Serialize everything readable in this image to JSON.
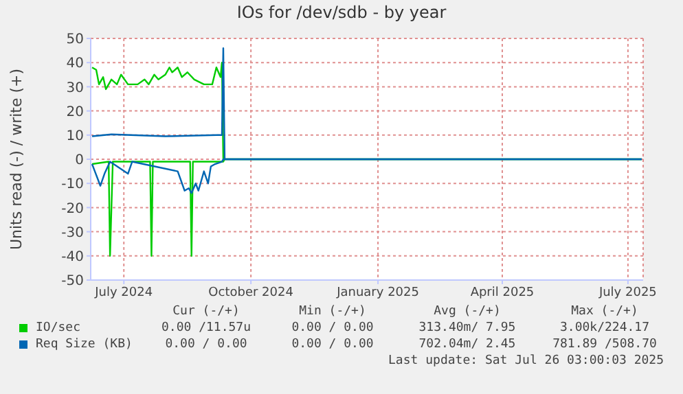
{
  "chart_data": {
    "type": "line",
    "title": "IOs for /dev/sdb - by year",
    "ylabel": "Units read (-) / write (+)",
    "xlim": [
      "2024-06-21",
      "2025-07-26"
    ],
    "xticks": [
      {
        "value": "2024-07-15",
        "label": "July 2024"
      },
      {
        "value": "2024-10-15",
        "label": "October 2024"
      },
      {
        "value": "2025-01-15",
        "label": "January 2025"
      },
      {
        "value": "2025-04-15",
        "label": "April 2025"
      },
      {
        "value": "2025-07-15",
        "label": "July 2025"
      }
    ],
    "ylim": [
      -50,
      50
    ],
    "yticks": [
      -50,
      -40,
      -30,
      -20,
      -10,
      0,
      10,
      20,
      30,
      40,
      50
    ],
    "grid": true,
    "legend": "bottom",
    "marker": "none",
    "line_style": "solid",
    "series": [
      {
        "name": "IO/sec",
        "color": "#00cc00",
        "x": [
          "2024-06-22",
          "2024-06-25",
          "2024-06-27",
          "2024-06-30",
          "2024-07-02",
          "2024-07-06",
          "2024-07-10",
          "2024-07-13",
          "2024-07-18",
          "2024-07-25",
          "2024-07-30",
          "2024-08-02",
          "2024-08-06",
          "2024-08-09",
          "2024-08-14",
          "2024-08-17",
          "2024-08-19",
          "2024-08-23",
          "2024-08-26",
          "2024-08-30",
          "2024-09-04",
          "2024-09-11",
          "2024-09-17",
          "2024-09-20",
          "2024-09-23",
          "2024-09-24",
          "2024-09-25"
        ],
        "values": [
          38,
          37,
          31,
          34,
          29,
          33,
          31,
          35,
          31,
          31,
          33,
          31,
          35,
          33,
          35,
          38,
          36,
          38,
          34,
          36,
          33,
          31,
          31,
          38,
          34,
          40,
          0
        ]
      },
      {
        "name": "Req Size (KB)",
        "color": "#0066b3",
        "x": [
          "2024-06-22",
          "2024-07-06",
          "2024-08-14",
          "2024-09-20",
          "2024-09-24",
          "2024-09-25",
          "2024-09-26",
          "2025-07-25"
        ],
        "values": [
          9.5,
          10.3,
          9.5,
          10,
          10,
          46,
          0,
          0
        ]
      },
      {
        "color": "#00cc00",
        "x": [
          "2024-06-22",
          "2024-07-04",
          "2024-07-05",
          "2024-07-07",
          "2024-08-03",
          "2024-08-04",
          "2024-08-05",
          "2024-09-01",
          "2024-09-02",
          "2024-09-03",
          "2024-09-25",
          "2024-09-26",
          "2025-07-25"
        ],
        "values": [
          -2,
          -1,
          -40,
          -1,
          -1,
          -40,
          -1,
          -1,
          -40,
          -1,
          -1,
          0,
          0
        ]
      },
      {
        "color": "#0066b3",
        "x": [
          "2024-06-22",
          "2024-06-24",
          "2024-06-28",
          "2024-07-01",
          "2024-07-05",
          "2024-07-18",
          "2024-07-21",
          "2024-08-23",
          "2024-08-28",
          "2024-08-31",
          "2024-09-02",
          "2024-09-05",
          "2024-09-07",
          "2024-09-11",
          "2024-09-14",
          "2024-09-16",
          "2024-09-19",
          "2024-09-24",
          "2024-09-25",
          "2025-07-25"
        ],
        "values": [
          -2,
          -5,
          -11,
          -6,
          -1,
          -6,
          -1,
          -5,
          -13,
          -12,
          -14,
          -10,
          -13,
          -5,
          -10,
          -3,
          -2,
          -1,
          0,
          0
        ]
      }
    ],
    "annotations": [
      "Cur (-/+)",
      "Min (-/+)",
      "Avg (-/+)",
      "Max (-/+)",
      "0.00 /11.57u",
      "0.00 / 0.00",
      "313.40m/ 7.95",
      "3.00k/224.17",
      "0.00 / 0.00",
      "0.00 / 0.00",
      "702.04m/ 2.45",
      "781.89 /508.70",
      "Last update: Sat Jul 26 03:00:03 2025"
    ]
  }
}
